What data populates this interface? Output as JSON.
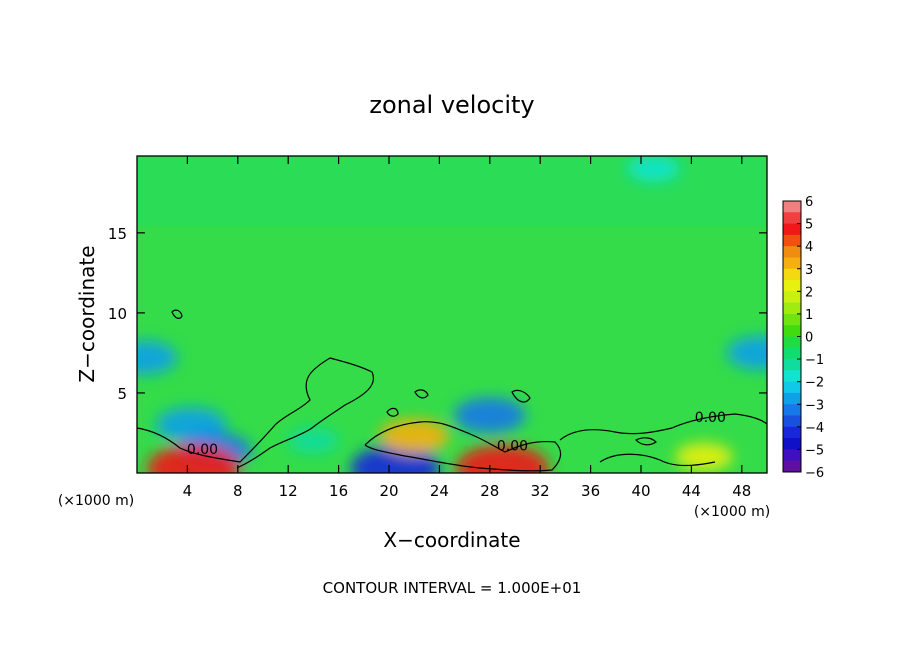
{
  "chart_data": {
    "type": "heatmap",
    "title": "zonal velocity",
    "xlabel": "X−coordinate",
    "ylabel": "Z−coordinate",
    "x_unit_left": "(×1000 m)",
    "x_unit_right": "(×1000 m)",
    "footer": "CONTOUR INTERVAL = 1.000E+01",
    "xlim": [
      0,
      50
    ],
    "ylim": [
      0,
      19.8
    ],
    "x_ticks": [
      4,
      8,
      12,
      16,
      20,
      24,
      28,
      32,
      36,
      40,
      44,
      48
    ],
    "y_ticks": [
      5,
      10,
      15
    ],
    "colorbar": {
      "tick_labels": [
        "6",
        "5",
        "4",
        "3",
        "2",
        "1",
        "0",
        "−1",
        "−2",
        "−3",
        "−4",
        "−5",
        "−6"
      ],
      "levels_top_to_bottom": [
        {
          "range": [
            5.5,
            6
          ],
          "color": "#f08080"
        },
        {
          "range": [
            5,
            5.5
          ],
          "color": "#f04040"
        },
        {
          "range": [
            4.5,
            5
          ],
          "color": "#f01818"
        },
        {
          "range": [
            4,
            4.5
          ],
          "color": "#f05010"
        },
        {
          "range": [
            3.5,
            4
          ],
          "color": "#f08c10"
        },
        {
          "range": [
            3,
            3.5
          ],
          "color": "#f4b010"
        },
        {
          "range": [
            2.5,
            3
          ],
          "color": "#f4d810"
        },
        {
          "range": [
            2,
            2.5
          ],
          "color": "#e8f010"
        },
        {
          "range": [
            1.5,
            2
          ],
          "color": "#c8f010"
        },
        {
          "range": [
            1,
            1.5
          ],
          "color": "#a0ec10"
        },
        {
          "range": [
            0.5,
            1
          ],
          "color": "#70e410"
        },
        {
          "range": [
            0,
            0.5
          ],
          "color": "#40dc10"
        },
        {
          "range": [
            -0.5,
            0
          ],
          "color": "#20dc40"
        },
        {
          "range": [
            -1,
            -0.5
          ],
          "color": "#10dc70"
        },
        {
          "range": [
            -1.5,
            -1
          ],
          "color": "#10dca0"
        },
        {
          "range": [
            -2,
            -1.5
          ],
          "color": "#10e4d0"
        },
        {
          "range": [
            -2.5,
            -2
          ],
          "color": "#10c8e8"
        },
        {
          "range": [
            -3,
            -2.5
          ],
          "color": "#10a0e8"
        },
        {
          "range": [
            -3.5,
            -3
          ],
          "color": "#1878e8"
        },
        {
          "range": [
            -4,
            -3.5
          ],
          "color": "#1850e0"
        },
        {
          "range": [
            -4.5,
            -4
          ],
          "color": "#1828d8"
        },
        {
          "range": [
            -5,
            -4.5
          ],
          "color": "#1010c8"
        },
        {
          "range": [
            -5.5,
            -5
          ],
          "color": "#4010c0"
        },
        {
          "range": [
            -6,
            -5.5
          ],
          "color": "#6010a0"
        }
      ]
    },
    "contour_labels": [
      {
        "text": "0.00",
        "x": 5.2,
        "y": 1.2
      },
      {
        "text": "0.00",
        "x": 29.8,
        "y": 1.4
      },
      {
        "text": "0.00",
        "x": 45.5,
        "y": 3.2
      }
    ],
    "features": [
      {
        "kind": "minimum",
        "x": 0.5,
        "y": 7.2,
        "value": -2.8
      },
      {
        "kind": "minimum",
        "x": 49.5,
        "y": 7.5,
        "value": -2.8
      },
      {
        "kind": "minimum",
        "x": 4.3,
        "y": 3.0,
        "value": -3.0
      },
      {
        "kind": "minimum",
        "x": 6.2,
        "y": 1.4,
        "value": -3.2
      },
      {
        "kind": "minimum",
        "x": 28.0,
        "y": 3.6,
        "value": -3.1
      },
      {
        "kind": "minimum",
        "x": 20.5,
        "y": 0.3,
        "value": -4.5
      },
      {
        "kind": "minimum",
        "x": 41.0,
        "y": 19.0,
        "value": -1.6
      },
      {
        "kind": "maximum",
        "x": 4.5,
        "y": 0.3,
        "value": 4.8
      },
      {
        "kind": "maximum",
        "x": 29.0,
        "y": 0.3,
        "value": 4.8
      },
      {
        "kind": "maximum",
        "x": 22.0,
        "y": 2.3,
        "value": 3.0
      },
      {
        "kind": "maximum",
        "x": 45.0,
        "y": 1.0,
        "value": 2.0
      },
      {
        "kind": "minimum",
        "x": 14.0,
        "y": 2.0,
        "value": -1.5
      }
    ]
  }
}
